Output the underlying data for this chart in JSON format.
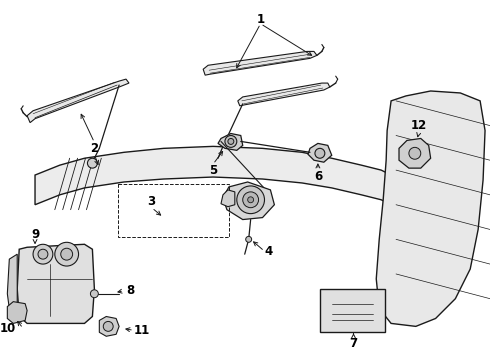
{
  "bg_color": "#ffffff",
  "line_color": "#1a1a1a",
  "label_color": "#000000",
  "figsize": [
    4.9,
    3.6
  ],
  "dpi": 100,
  "lw_main": 1.0,
  "lw_thin": 0.6,
  "label_fontsize": 8.5
}
